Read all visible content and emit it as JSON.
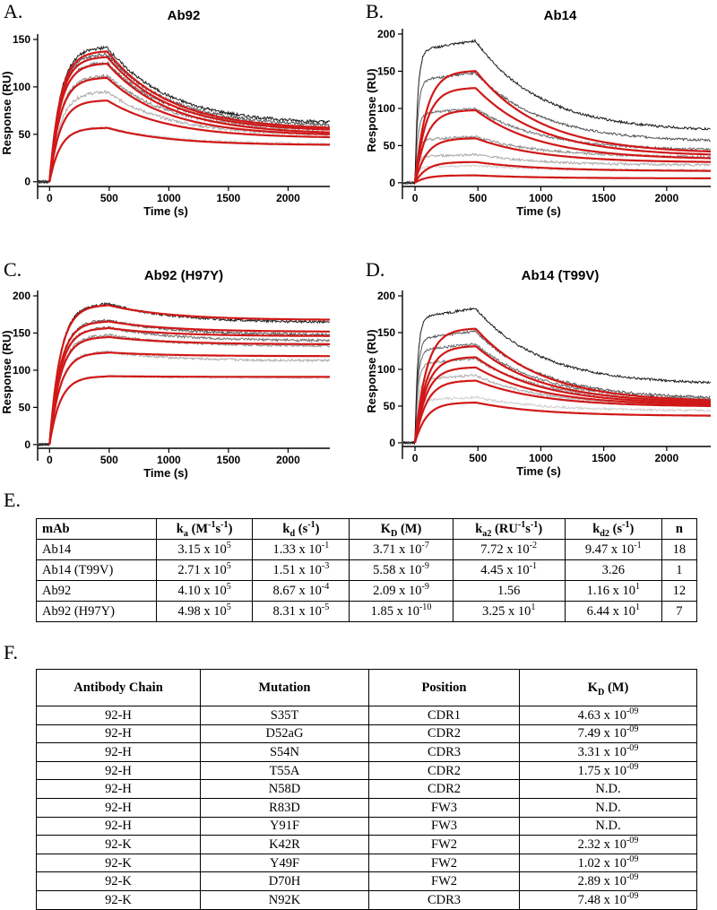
{
  "panels": {
    "A": "A.",
    "B": "B.",
    "C": "C.",
    "D": "D.",
    "E": "E.",
    "F": "F."
  },
  "colors": {
    "fit": "#d01818",
    "conc_1": "#1a1a1a",
    "conc_2": "#555555",
    "conc_3": "#6e6e6e",
    "conc_4": "#8c8c8c",
    "conc_5": "#ababab",
    "conc_6": "#cfcfcf"
  },
  "chart_data": [
    {
      "type": "line",
      "title": "Ab92",
      "xlabel": "Time (s)",
      "ylabel": "Response (RU)",
      "xlim": [
        -100,
        2350
      ],
      "ylim": [
        -5,
        150
      ],
      "x_ticks": [
        "0",
        "500",
        "1000",
        "1500",
        "2000"
      ],
      "y_ticks": [
        "0",
        "50",
        "100",
        "150"
      ],
      "injection_end_s": 480,
      "series": [
        {
          "name": "conc 1",
          "peak": 142,
          "end": 63
        },
        {
          "name": "conc 2",
          "peak": 135,
          "end": 60
        },
        {
          "name": "conc 3",
          "peak": 126,
          "end": 57
        },
        {
          "name": "conc 4",
          "peak": 112,
          "end": 55
        },
        {
          "name": "conc 5",
          "peak": 95,
          "end": 50
        },
        {
          "name": "conc 6",
          "peak": 57,
          "end": 40
        }
      ],
      "fits": [
        {
          "peak": 138,
          "end": 57
        },
        {
          "peak": 132,
          "end": 55
        },
        {
          "peak": 125,
          "end": 52
        },
        {
          "peak": 110,
          "end": 50
        },
        {
          "peak": 86,
          "end": 47
        },
        {
          "peak": 57,
          "end": 39
        }
      ]
    },
    {
      "type": "line",
      "title": "Ab14",
      "xlabel": "Time (s)",
      "ylabel": "Response (RU)",
      "xlim": [
        -100,
        2350
      ],
      "ylim": [
        -5,
        200
      ],
      "x_ticks": [
        "0",
        "500",
        "1000",
        "1500",
        "2000"
      ],
      "y_ticks": [
        "0",
        "50",
        "100",
        "150",
        "200"
      ],
      "injection_end_s": 480,
      "series": [
        {
          "name": "conc 1",
          "peak": 191,
          "end": 72
        },
        {
          "name": "conc 2",
          "peak": 148,
          "end": 57
        },
        {
          "name": "conc 3",
          "peak": 100,
          "end": 45
        },
        {
          "name": "conc 4",
          "peak": 62,
          "end": 35
        },
        {
          "name": "conc 5",
          "peak": 38,
          "end": 24
        },
        {
          "name": "conc 6",
          "peak": 23,
          "end": 17
        }
      ],
      "fits": [
        {
          "peak": 151,
          "end": 42
        },
        {
          "peak": 128,
          "end": 38
        },
        {
          "peak": 98,
          "end": 33
        },
        {
          "peak": 60,
          "end": 28
        },
        {
          "peak": 28,
          "end": 16
        },
        {
          "peak": 10,
          "end": 6
        }
      ]
    },
    {
      "type": "line",
      "title": "Ab92 (H97Y)",
      "xlabel": "Time (s)",
      "ylabel": "Response (RU)",
      "xlim": [
        -100,
        2350
      ],
      "ylim": [
        -5,
        200
      ],
      "x_ticks": [
        "0",
        "500",
        "1000",
        "1500",
        "2000"
      ],
      "y_ticks": [
        "0",
        "50",
        "100",
        "150",
        "200"
      ],
      "injection_end_s": 480,
      "series": [
        {
          "name": "conc 1",
          "peak": 190,
          "end": 165
        },
        {
          "name": "conc 2",
          "peak": 168,
          "end": 148
        },
        {
          "name": "conc 3",
          "peak": 158,
          "end": 140
        },
        {
          "name": "conc 4",
          "peak": 148,
          "end": 133
        },
        {
          "name": "conc 5",
          "peak": 125,
          "end": 113
        },
        {
          "name": "conc 6",
          "peak": 92,
          "end": 90
        }
      ],
      "fits": [
        {
          "peak": 188,
          "end": 168
        },
        {
          "peak": 166,
          "end": 152
        },
        {
          "peak": 157,
          "end": 146
        },
        {
          "peak": 145,
          "end": 135
        },
        {
          "peak": 124,
          "end": 119
        },
        {
          "peak": 92,
          "end": 91
        }
      ]
    },
    {
      "type": "line",
      "title": "Ab14 (T99V)",
      "xlabel": "Time (s)",
      "ylabel": "Response (RU)",
      "xlim": [
        -100,
        2350
      ],
      "ylim": [
        -5,
        200
      ],
      "x_ticks": [
        "0",
        "500",
        "1000",
        "1500",
        "2000"
      ],
      "y_ticks": [
        "0",
        "50",
        "100",
        "150",
        "200"
      ],
      "injection_end_s": 480,
      "series": [
        {
          "name": "conc 1",
          "peak": 183,
          "end": 82
        },
        {
          "name": "conc 2",
          "peak": 152,
          "end": 62
        },
        {
          "name": "conc 3",
          "peak": 135,
          "end": 60
        },
        {
          "name": "conc 4",
          "peak": 115,
          "end": 58
        },
        {
          "name": "conc 5",
          "peak": 92,
          "end": 52
        },
        {
          "name": "conc 6",
          "peak": 62,
          "end": 44
        }
      ],
      "fits": [
        {
          "peak": 156,
          "end": 58
        },
        {
          "peak": 132,
          "end": 56
        },
        {
          "peak": 117,
          "end": 54
        },
        {
          "peak": 103,
          "end": 52
        },
        {
          "peak": 85,
          "end": 50
        },
        {
          "peak": 55,
          "end": 37
        }
      ]
    }
  ],
  "kinetics_table": {
    "headers": [
      "mAb",
      "ka (M-1s-1)",
      "kd (s-1)",
      "KD (M)",
      "ka2 (RU-1s-1)",
      "kd2 (s-1)",
      "n"
    ],
    "rows": [
      [
        "Ab14",
        "3.15 x 105",
        "1.33 x 10-1",
        "3.71 x 10-7",
        "7.72 x 10-2",
        "9.47 x 10-1",
        "18"
      ],
      [
        "Ab14 (T99V)",
        "2.71 x 105",
        "1.51 x 10-3",
        "5.58 x 10-9",
        "4.45 x 10-1",
        "3.26",
        "1"
      ],
      [
        "Ab92",
        "4.10 x 105",
        "8.67 x 10-4",
        "2.09 x 10-9",
        "1.56",
        "1.16 x 101",
        "12"
      ],
      [
        "Ab92 (H97Y)",
        "4.98 x 105",
        "8.31 x 10-5",
        "1.85 x 10-10",
        "3.25 x 101",
        "6.44 x 101",
        "7"
      ]
    ]
  },
  "mutation_table": {
    "headers": [
      "Antibody Chain",
      "Mutation",
      "Position",
      "KD (M)"
    ],
    "rows": [
      [
        "92-H",
        "S35T",
        "CDR1",
        "4.63 x 10-09"
      ],
      [
        "92-H",
        "D52aG",
        "CDR2",
        "7.49 x 10-09"
      ],
      [
        "92-H",
        "S54N",
        "CDR3",
        "3.31 x 10-09"
      ],
      [
        "92-H",
        "T55A",
        "CDR2",
        "1.75 x 10-09"
      ],
      [
        "92-H",
        "N58D",
        "CDR2",
        "N.D."
      ],
      [
        "92-H",
        "R83D",
        "FW3",
        "N.D."
      ],
      [
        "92-H",
        "Y91F",
        "FW3",
        "N.D."
      ],
      [
        "92-K",
        "K42R",
        "FW2",
        "2.32 x 10-09"
      ],
      [
        "92-K",
        "Y49F",
        "FW2",
        "1.02 x 10-09"
      ],
      [
        "92-K",
        "D70H",
        "FW2",
        "2.89 x 10-09"
      ],
      [
        "92-K",
        "N92K",
        "CDR3",
        "7.48 x 10-09"
      ]
    ]
  }
}
